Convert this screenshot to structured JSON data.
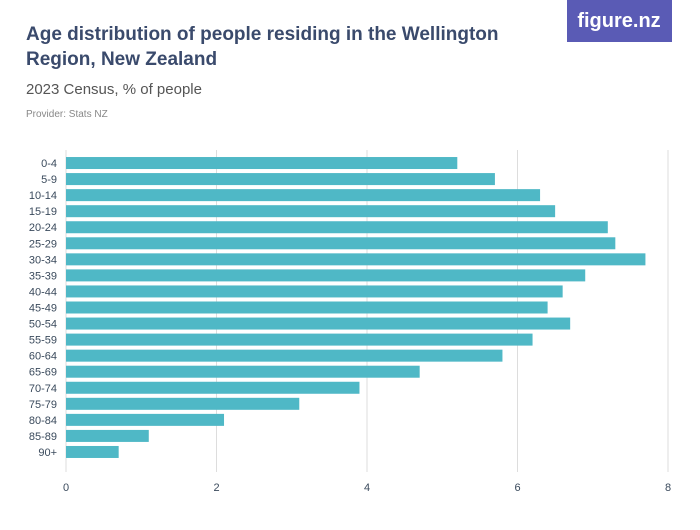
{
  "chart_data": {
    "type": "hbar",
    "title": "Age distribution of people residing in the Wellington Region, New Zealand",
    "subtitle": "2023 Census, % of people",
    "provider": "Provider: Stats NZ",
    "logo": "figure.nz",
    "categories": [
      "0-4",
      "5-9",
      "10-14",
      "15-19",
      "20-24",
      "25-29",
      "30-34",
      "35-39",
      "40-44",
      "45-49",
      "50-54",
      "55-59",
      "60-64",
      "65-69",
      "70-74",
      "75-79",
      "80-84",
      "85-89",
      "90+"
    ],
    "values": [
      5.2,
      5.7,
      6.3,
      6.5,
      7.2,
      7.3,
      7.7,
      6.9,
      6.6,
      6.4,
      6.7,
      6.2,
      5.8,
      4.7,
      3.9,
      3.1,
      2.1,
      1.1,
      0.7
    ],
    "color": "#4fb8c6",
    "xlim": [
      0,
      8
    ],
    "xticks": [
      0,
      2,
      4,
      6,
      8
    ],
    "grid": true
  }
}
